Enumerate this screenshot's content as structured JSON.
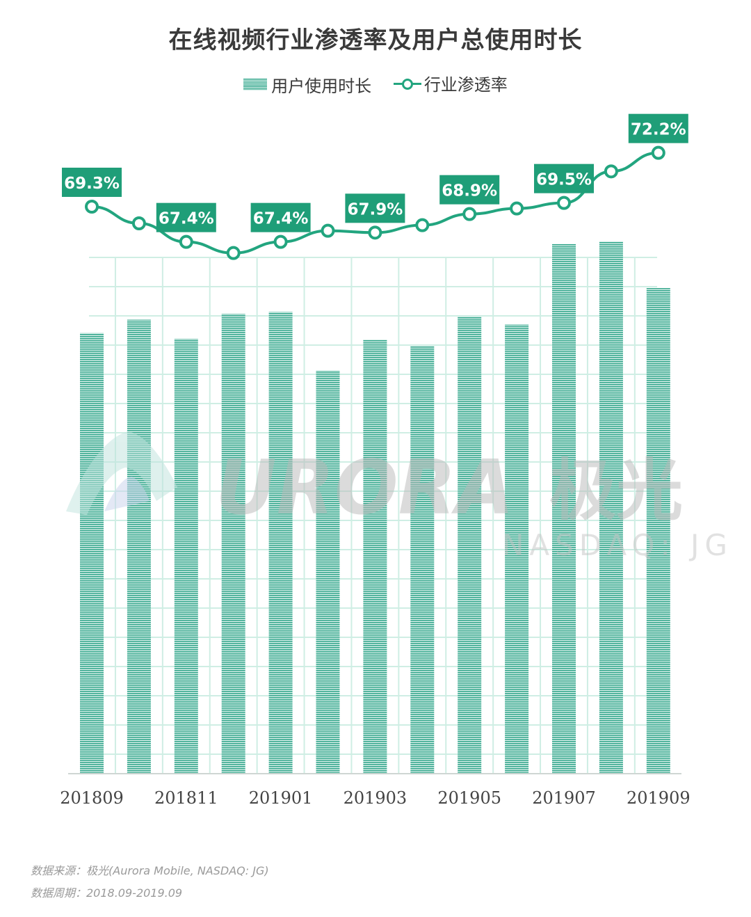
{
  "title": "在线视频行业渗透率及用户总使用时长",
  "legend": {
    "bar_label": "用户使用时长",
    "line_label": "行业渗透率"
  },
  "footer": {
    "source": "数据来源：极光(Aurora Mobile, NASDAQ: JG)",
    "period": "数据周期：2018.09-2019.09"
  },
  "watermark": {
    "logo_text": "URORA",
    "logo_cn": "极光",
    "sub": "NASDAQ: JG"
  },
  "colors": {
    "bar": "#37a88e",
    "line": "#22a57f",
    "label_bg": "#1f9e78",
    "grid": "#cfeee4"
  },
  "chart_data": {
    "type": "bar",
    "x": [
      "201809",
      "201810",
      "201811",
      "201812",
      "201901",
      "201902",
      "201903",
      "201904",
      "201905",
      "201906",
      "201907",
      "201908",
      "201909"
    ],
    "tick_labels": [
      "201809",
      "201811",
      "201901",
      "201903",
      "201905",
      "201907",
      "201909"
    ],
    "series": [
      {
        "name": "用户使用时长",
        "type": "bar",
        "values": [
          66.9,
          68.9,
          66.0,
          69.8,
          70.1,
          61.2,
          65.9,
          64.9,
          69.4,
          68.2,
          80.4,
          80.8,
          73.7
        ]
      },
      {
        "name": "行业渗透率",
        "type": "line",
        "values": [
          69.3,
          68.4,
          67.4,
          66.8,
          67.4,
          68.0,
          67.9,
          68.3,
          68.9,
          69.2,
          69.5,
          71.2,
          72.2
        ],
        "labels": [
          "69.3%",
          null,
          "67.4%",
          null,
          "67.4%",
          null,
          "67.9%",
          null,
          "68.9%",
          null,
          "69.5%",
          null,
          "72.2%"
        ]
      }
    ],
    "bar_ylim": [
      0,
      100
    ],
    "line_ylim": [
      60,
      75
    ],
    "grid": true
  }
}
